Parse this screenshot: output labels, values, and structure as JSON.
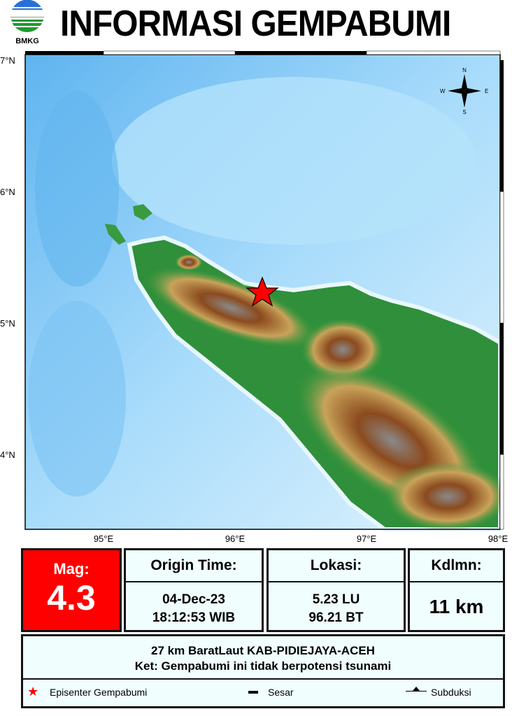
{
  "header": {
    "title": "INFORMASI GEMPABUMI",
    "logo_text": "BMKG"
  },
  "map": {
    "lat_ticks": [
      "7°N",
      "6°N",
      "5°N",
      "4°N"
    ],
    "lon_ticks": [
      "95°E",
      "96°E",
      "97°E",
      "98°E"
    ],
    "compass": {
      "n": "N",
      "s": "S",
      "e": "E",
      "w": "W"
    },
    "epicenter": {
      "lat": 5.23,
      "lon": 96.21,
      "color": "#ff0000"
    }
  },
  "info": {
    "mag_label": "Mag:",
    "mag_value": "4.3",
    "time_label": "Origin Time:",
    "date": "04-Dec-23",
    "time": "18:12:53 WIB",
    "loc_label": "Lokasi:",
    "lat": "5.23 LU",
    "lon": "96.21 BT",
    "depth_label": "Kdlmn:",
    "depth": "11 km",
    "location_desc": "27 km BaratLaut KAB-PIDIEJAYA-ACEH",
    "note": "Ket: Gempabumi ini tidak berpotensi tsunami"
  },
  "legend": {
    "epicenter": "Episenter Gempabumi",
    "fault": "Sesar",
    "subduction": "Subduksi"
  },
  "colors": {
    "mag_bg": "#ff0000",
    "panel_bg": "#f0fffe"
  }
}
